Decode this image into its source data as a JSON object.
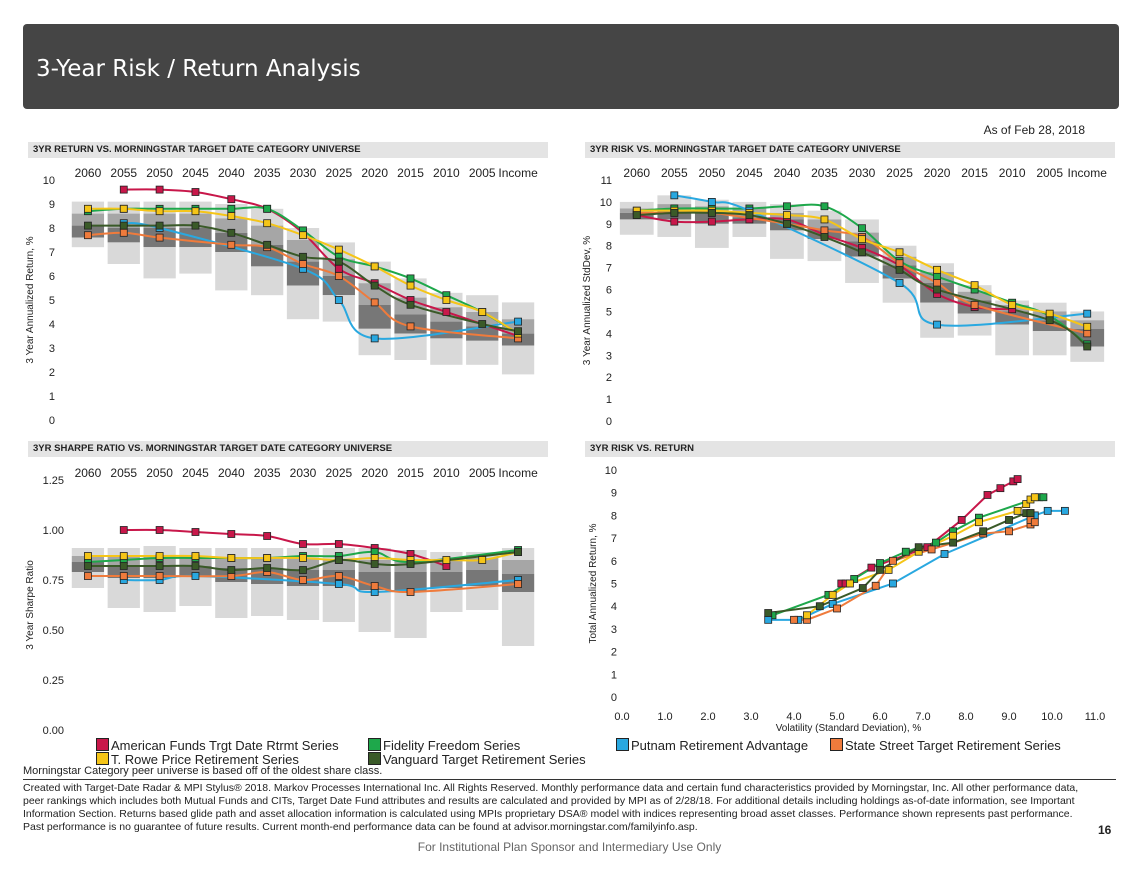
{
  "title": "3-Year Risk / Return Analysis",
  "as_of": "As of Feb 28, 2018",
  "note": "Morningstar Category peer universe is based off of the oldest share class.",
  "disclaimer": "Created with Target-Date Radar & MPI Stylus® 2018. Markov Processes International Inc. All Rights Reserved. Monthly performance data and certain fund characteristics provided by Morningstar, Inc. All other performance data, peer rankings which includes both Mutual Funds and CITs, Target Date Fund attributes and results are calculated and provided by MPI as of 2/28/18. For additional details including holdings as-of-date information, see Important Information Section. Returns based glide path and asset allocation information is calculated using MPIs proprietary DSA® model with indices representing broad asset classes. Performance shown represents past performance. Past performance is no guarantee of future results. Current month-end performance data can be found at advisor.morningstar.com/familyinfo.asp.",
  "page_number": "16",
  "footer": "For Institutional Plan Sponsor and Intermediary Use Only",
  "legend": [
    {
      "name": "American Funds Trgt Date Rtrmt Series",
      "color": "#c8174a"
    },
    {
      "name": "Fidelity Freedom Series",
      "color": "#1ea84b"
    },
    {
      "name": "Putnam Retirement Advantage",
      "color": "#29a8e0"
    },
    {
      "name": "State Street Target Retirement Series",
      "color": "#ef7b3c"
    },
    {
      "name": "T. Rowe Price Retirement Series",
      "color": "#f5c518"
    },
    {
      "name": "Vanguard Target Retirement Series",
      "color": "#3a5a28"
    }
  ],
  "colors": {
    "band_dark": "#777777",
    "band_mid": "#a6a6a6",
    "band_light": "#d9d9d9"
  },
  "chart_data": [
    {
      "id": "return",
      "type": "line",
      "title": "3YR RETURN VS. MORNINGSTAR TARGET DATE CATEGORY UNIVERSE",
      "ylabel": "3 Year Annualized Return, %",
      "ylim": [
        0,
        10
      ],
      "yticks": [
        "0",
        "1",
        "2",
        "3",
        "4",
        "5",
        "6",
        "7",
        "8",
        "9",
        "10"
      ],
      "categories": [
        "2060",
        "2055",
        "2050",
        "2045",
        "2040",
        "2035",
        "2030",
        "2025",
        "2020",
        "2015",
        "2010",
        "2005",
        "Income"
      ],
      "bands": [
        [
          7.2,
          7.6,
          8.1,
          8.6,
          9.1
        ],
        [
          6.5,
          7.4,
          8.0,
          8.6,
          9.1
        ],
        [
          5.9,
          7.2,
          8.0,
          8.6,
          9.1
        ],
        [
          6.1,
          7.2,
          8.0,
          8.6,
          9.1
        ],
        [
          5.4,
          7.0,
          7.8,
          8.4,
          9.0
        ],
        [
          5.2,
          6.4,
          7.3,
          8.1,
          8.8
        ],
        [
          4.2,
          5.6,
          6.6,
          7.5,
          8.0
        ],
        [
          4.1,
          5.2,
          6.0,
          6.7,
          7.4
        ],
        [
          2.7,
          3.8,
          4.8,
          5.7,
          6.6
        ],
        [
          2.5,
          3.6,
          4.4,
          5.1,
          5.9
        ],
        [
          2.3,
          3.4,
          4.1,
          4.7,
          5.3
        ],
        [
          2.3,
          3.3,
          3.9,
          4.5,
          5.2
        ],
        [
          1.9,
          3.1,
          3.6,
          4.2,
          4.9
        ]
      ],
      "series": [
        {
          "name": "American Funds Trgt Date Rtrmt Series",
          "values": [
            null,
            9.6,
            9.6,
            9.5,
            9.2,
            8.8,
            7.8,
            6.3,
            5.7,
            5.0,
            4.5,
            null,
            3.5
          ]
        },
        {
          "name": "Fidelity Freedom Series",
          "values": [
            8.7,
            8.8,
            8.8,
            8.8,
            8.8,
            8.8,
            7.9,
            6.8,
            6.4,
            5.9,
            5.2,
            4.5,
            3.6
          ]
        },
        {
          "name": "Putnam Retirement Advantage",
          "values": [
            null,
            8.2,
            8.0,
            null,
            null,
            null,
            6.3,
            5.0,
            3.4,
            null,
            null,
            null,
            4.1
          ]
        },
        {
          "name": "State Street Target Retirement Series",
          "values": [
            7.7,
            7.8,
            7.6,
            null,
            7.3,
            7.2,
            6.5,
            6.0,
            4.9,
            3.9,
            null,
            null,
            3.4
          ]
        },
        {
          "name": "T. Rowe Price Retirement Series",
          "values": [
            8.8,
            8.8,
            8.7,
            8.7,
            8.5,
            8.2,
            7.7,
            7.1,
            6.4,
            5.6,
            5.0,
            4.5,
            3.6
          ]
        },
        {
          "name": "Vanguard Target Retirement Series",
          "values": [
            8.1,
            8.1,
            8.1,
            8.1,
            7.8,
            7.3,
            6.8,
            6.6,
            5.6,
            4.8,
            null,
            4.0,
            3.7
          ]
        }
      ]
    },
    {
      "id": "risk",
      "type": "line",
      "title": "3YR RISK VS. MORNINGSTAR TARGET DATE CATEGORY UNIVERSE",
      "ylabel": "3 Year Annualized StdDev, %",
      "ylim": [
        0,
        11
      ],
      "yticks": [
        "0",
        "1",
        "2",
        "3",
        "4",
        "5",
        "6",
        "7",
        "8",
        "9",
        "10",
        "11"
      ],
      "categories": [
        "2060",
        "2055",
        "2050",
        "2045",
        "2040",
        "2035",
        "2030",
        "2025",
        "2020",
        "2015",
        "2010",
        "2005",
        "Income"
      ],
      "bands": [
        [
          8.5,
          9.2,
          9.5,
          9.7,
          10.0
        ],
        [
          8.4,
          9.2,
          9.6,
          9.9,
          10.3
        ],
        [
          7.9,
          9.0,
          9.5,
          9.8,
          10.1
        ],
        [
          8.4,
          9.0,
          9.3,
          9.7,
          10.0
        ],
        [
          7.4,
          8.7,
          9.2,
          9.5,
          9.9
        ],
        [
          7.3,
          8.3,
          8.8,
          9.2,
          9.6
        ],
        [
          6.3,
          7.5,
          8.2,
          8.6,
          9.2
        ],
        [
          5.4,
          6.5,
          7.1,
          7.5,
          8.0
        ],
        [
          3.8,
          5.4,
          6.3,
          6.8,
          7.2
        ],
        [
          3.9,
          4.9,
          5.5,
          5.9,
          6.2
        ],
        [
          3.0,
          4.4,
          5.0,
          5.3,
          5.5
        ],
        [
          3.0,
          4.1,
          4.6,
          5.0,
          5.4
        ],
        [
          2.7,
          3.4,
          4.2,
          4.6,
          5.0
        ]
      ],
      "series": [
        {
          "name": "American Funds Trgt Date Rtrmt Series",
          "values": [
            9.4,
            9.1,
            9.1,
            9.2,
            9.2,
            8.5,
            7.9,
            7.1,
            5.8,
            5.2,
            5.1,
            null,
            null
          ]
        },
        {
          "name": "Fidelity Freedom Series",
          "values": [
            9.6,
            9.7,
            9.7,
            9.7,
            9.8,
            9.8,
            8.8,
            7.3,
            6.6,
            6.0,
            5.4,
            4.8,
            3.5
          ]
        },
        {
          "name": "Putnam Retirement Advantage",
          "values": [
            null,
            10.3,
            10.0,
            9.6,
            null,
            null,
            null,
            6.3,
            4.4,
            null,
            null,
            null,
            4.9
          ]
        },
        {
          "name": "State Street Target Retirement Series",
          "values": [
            9.5,
            9.5,
            9.5,
            null,
            9.0,
            8.7,
            8.4,
            7.2,
            6.3,
            5.3,
            null,
            null,
            4.0
          ]
        },
        {
          "name": "T. Rowe Price Retirement Series",
          "values": [
            9.6,
            9.6,
            9.6,
            9.5,
            9.4,
            9.2,
            8.3,
            7.7,
            6.9,
            6.2,
            5.3,
            4.9,
            4.3
          ]
        },
        {
          "name": "Vanguard Target Retirement Series",
          "values": [
            9.4,
            9.5,
            9.5,
            9.4,
            9.0,
            8.4,
            7.7,
            6.9,
            6.0,
            null,
            null,
            4.6,
            3.4
          ]
        }
      ]
    },
    {
      "id": "sharpe",
      "type": "line",
      "title": "3YR SHARPE RATIO VS. MORNINGSTAR TARGET DATE CATEGORY UNIVERSE",
      "ylabel": "3 Year Sharpe Ratio",
      "ylim": [
        0,
        1.25
      ],
      "yticks": [
        "0.00",
        "0.25",
        "0.50",
        "0.75",
        "1.00",
        "1.25"
      ],
      "categories": [
        "2060",
        "2055",
        "2050",
        "2045",
        "2040",
        "2035",
        "2030",
        "2025",
        "2020",
        "2015",
        "2010",
        "2005",
        "Income"
      ],
      "bands": [
        [
          0.71,
          0.79,
          0.84,
          0.87,
          0.91
        ],
        [
          0.61,
          0.76,
          0.82,
          0.87,
          0.91
        ],
        [
          0.59,
          0.76,
          0.82,
          0.87,
          0.92
        ],
        [
          0.62,
          0.77,
          0.82,
          0.87,
          0.91
        ],
        [
          0.56,
          0.74,
          0.81,
          0.86,
          0.91
        ],
        [
          0.57,
          0.73,
          0.81,
          0.86,
          0.91
        ],
        [
          0.55,
          0.72,
          0.8,
          0.86,
          0.91
        ],
        [
          0.54,
          0.72,
          0.8,
          0.85,
          0.91
        ],
        [
          0.49,
          0.7,
          0.79,
          0.85,
          0.91
        ],
        [
          0.46,
          0.69,
          0.79,
          0.85,
          0.9
        ],
        [
          0.59,
          0.71,
          0.79,
          0.85,
          0.89
        ],
        [
          0.6,
          0.72,
          0.8,
          0.86,
          0.89
        ],
        [
          0.42,
          0.69,
          0.78,
          0.85,
          0.91
        ]
      ],
      "series": [
        {
          "name": "American Funds Trgt Date Rtrmt Series",
          "values": [
            null,
            1.0,
            1.0,
            0.99,
            0.98,
            0.97,
            0.93,
            0.93,
            0.91,
            0.88,
            0.82,
            null,
            null
          ]
        },
        {
          "name": "Fidelity Freedom Series",
          "values": [
            0.84,
            0.85,
            0.86,
            0.86,
            0.86,
            0.86,
            0.87,
            0.87,
            0.89,
            0.84,
            null,
            null,
            0.9
          ]
        },
        {
          "name": "Putnam Retirement Advantage",
          "values": [
            null,
            0.75,
            0.75,
            0.77,
            null,
            null,
            null,
            0.73,
            0.69,
            null,
            null,
            null,
            0.75
          ]
        },
        {
          "name": "State Street Target Retirement Series",
          "values": [
            0.77,
            0.77,
            0.77,
            null,
            0.77,
            0.79,
            0.75,
            0.77,
            0.72,
            0.69,
            null,
            null,
            0.73
          ]
        },
        {
          "name": "T. Rowe Price Retirement Series",
          "values": [
            0.87,
            0.87,
            0.87,
            0.87,
            0.86,
            0.86,
            0.86,
            0.85,
            0.86,
            0.85,
            0.85,
            0.85,
            0.89
          ]
        },
        {
          "name": "Vanguard Target Retirement Series",
          "values": [
            0.82,
            0.82,
            0.82,
            0.82,
            0.8,
            0.81,
            0.8,
            0.85,
            0.83,
            0.83,
            null,
            null,
            0.89
          ]
        }
      ]
    },
    {
      "id": "scatter",
      "type": "scatter",
      "title": "3YR RISK VS. RETURN",
      "xlabel": "Volatility (Standard Deviation), %",
      "ylabel": "Total Annualized Return, %",
      "xlim": [
        0,
        11
      ],
      "ylim": [
        0,
        10
      ],
      "xticks": [
        "0.0",
        "1.0",
        "2.0",
        "3.0",
        "4.0",
        "5.0",
        "6.0",
        "7.0",
        "8.0",
        "9.0",
        "10.0",
        "11.0"
      ],
      "yticks": [
        "0",
        "1",
        "2",
        "3",
        "4",
        "5",
        "6",
        "7",
        "8",
        "9",
        "10"
      ],
      "series": [
        {
          "name": "American Funds Trgt Date Rtrmt Series",
          "points": [
            [
              5.1,
              5.0
            ],
            [
              5.2,
              5.0
            ],
            [
              5.8,
              5.7
            ],
            [
              7.1,
              6.6
            ],
            [
              7.9,
              7.8
            ],
            [
              8.5,
              8.9
            ],
            [
              8.8,
              9.2
            ],
            [
              9.1,
              9.5
            ],
            [
              9.2,
              9.6
            ]
          ]
        },
        {
          "name": "Fidelity Freedom Series",
          "points": [
            [
              3.5,
              3.6
            ],
            [
              4.8,
              4.5
            ],
            [
              5.4,
              5.2
            ],
            [
              6.0,
              5.9
            ],
            [
              6.6,
              6.4
            ],
            [
              7.3,
              6.8
            ],
            [
              7.7,
              7.3
            ],
            [
              8.3,
              7.9
            ],
            [
              9.7,
              8.8
            ],
            [
              9.8,
              8.8
            ]
          ]
        },
        {
          "name": "Putnam Retirement Advantage",
          "points": [
            [
              3.4,
              3.4
            ],
            [
              4.1,
              3.4
            ],
            [
              4.9,
              4.1
            ],
            [
              6.3,
              5.0
            ],
            [
              7.5,
              6.3
            ],
            [
              9.6,
              8.0
            ],
            [
              9.9,
              8.2
            ],
            [
              10.3,
              8.2
            ]
          ]
        },
        {
          "name": "State Street Target Retirement Series",
          "points": [
            [
              4.0,
              3.4
            ],
            [
              4.3,
              3.4
            ],
            [
              5.0,
              3.9
            ],
            [
              5.9,
              4.9
            ],
            [
              6.3,
              6.0
            ],
            [
              7.2,
              6.5
            ],
            [
              8.4,
              7.2
            ],
            [
              9.0,
              7.3
            ],
            [
              9.5,
              7.6
            ],
            [
              9.5,
              7.8
            ],
            [
              9.6,
              7.7
            ]
          ]
        },
        {
          "name": "T. Rowe Price Retirement Series",
          "points": [
            [
              4.3,
              3.6
            ],
            [
              4.9,
              4.5
            ],
            [
              5.3,
              5.0
            ],
            [
              6.2,
              5.6
            ],
            [
              6.9,
              6.4
            ],
            [
              7.7,
              7.1
            ],
            [
              8.3,
              7.7
            ],
            [
              9.2,
              8.2
            ],
            [
              9.4,
              8.5
            ],
            [
              9.5,
              8.7
            ],
            [
              9.6,
              8.8
            ]
          ]
        },
        {
          "name": "Vanguard Target Retirement Series",
          "points": [
            [
              3.4,
              3.7
            ],
            [
              4.6,
              4.0
            ],
            [
              5.6,
              4.8
            ],
            [
              6.0,
              5.6
            ],
            [
              6.9,
              6.6
            ],
            [
              7.7,
              6.8
            ],
            [
              8.4,
              7.3
            ],
            [
              9.0,
              7.8
            ],
            [
              9.4,
              8.1
            ],
            [
              9.5,
              8.1
            ],
            [
              9.5,
              8.1
            ]
          ]
        }
      ]
    }
  ]
}
